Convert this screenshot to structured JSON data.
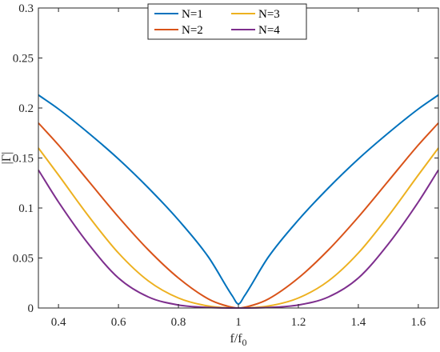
{
  "chart_data": {
    "type": "line",
    "xlabel_main": "f/f",
    "xlabel_sub": "0",
    "ylabel": "|Γ|",
    "xlim": [
      0.333,
      1.667
    ],
    "ylim": [
      0,
      0.3
    ],
    "xticks": [
      0.4,
      0.6,
      0.8,
      1,
      1.2,
      1.4,
      1.6
    ],
    "xtick_labels": [
      "0.4",
      "0.6",
      "0.8",
      "1",
      "1.2",
      "1.4",
      "1.6"
    ],
    "yticks": [
      0,
      0.05,
      0.1,
      0.15,
      0.2,
      0.25,
      0.3
    ],
    "ytick_labels": [
      "0",
      "0.05",
      "0.1",
      "0.15",
      "0.2",
      "0.25",
      "0.3"
    ],
    "grid": false,
    "legend_position": "top-center",
    "series": [
      {
        "name": "N=1",
        "color": "#0072BD",
        "x": [
          0.333,
          0.4,
          0.5,
          0.6,
          0.7,
          0.8,
          0.9,
          0.98,
          1.0,
          1.02,
          1.1,
          1.2,
          1.3,
          1.4,
          1.5,
          1.6,
          1.667
        ],
        "y": [
          0.213,
          0.199,
          0.175,
          0.149,
          0.12,
          0.088,
          0.051,
          0.012,
          0.004,
          0.012,
          0.051,
          0.088,
          0.12,
          0.149,
          0.175,
          0.199,
          0.213
        ]
      },
      {
        "name": "N=2",
        "color": "#D95319",
        "x": [
          0.333,
          0.4,
          0.5,
          0.6,
          0.7,
          0.8,
          0.9,
          0.95,
          1.0,
          1.05,
          1.1,
          1.2,
          1.3,
          1.4,
          1.5,
          1.6,
          1.667
        ],
        "y": [
          0.185,
          0.163,
          0.127,
          0.091,
          0.058,
          0.03,
          0.009,
          0.003,
          0.0,
          0.003,
          0.009,
          0.03,
          0.058,
          0.091,
          0.127,
          0.163,
          0.185
        ]
      },
      {
        "name": "N=3",
        "color": "#EDB120",
        "x": [
          0.333,
          0.4,
          0.5,
          0.6,
          0.7,
          0.8,
          0.9,
          1.0,
          1.1,
          1.2,
          1.3,
          1.4,
          1.5,
          1.6,
          1.667
        ],
        "y": [
          0.16,
          0.133,
          0.092,
          0.055,
          0.027,
          0.01,
          0.002,
          0.0,
          0.002,
          0.01,
          0.027,
          0.055,
          0.092,
          0.133,
          0.16
        ]
      },
      {
        "name": "N=4",
        "color": "#7E2F8E",
        "x": [
          0.333,
          0.4,
          0.5,
          0.6,
          0.7,
          0.8,
          0.9,
          1.0,
          1.1,
          1.2,
          1.3,
          1.4,
          1.5,
          1.6,
          1.667
        ],
        "y": [
          0.138,
          0.106,
          0.064,
          0.03,
          0.011,
          0.003,
          0.0005,
          0.0,
          0.0005,
          0.003,
          0.011,
          0.03,
          0.064,
          0.106,
          0.138
        ]
      }
    ]
  }
}
